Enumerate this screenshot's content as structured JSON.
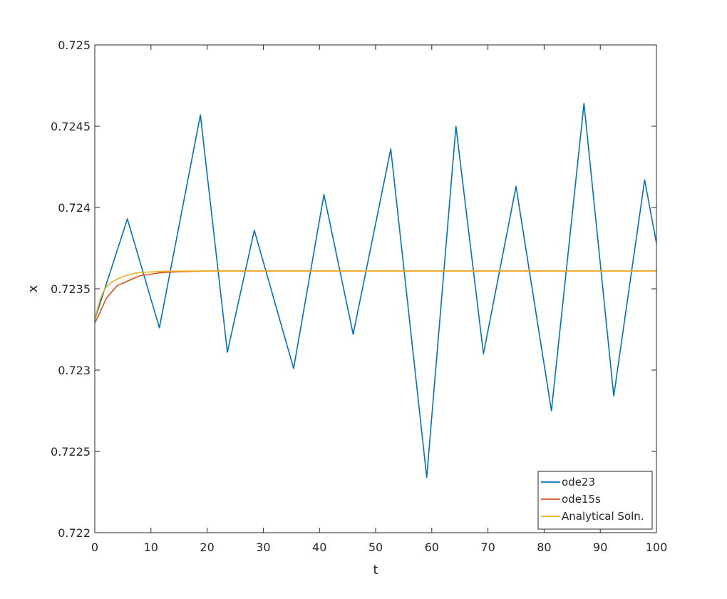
{
  "chart_data": {
    "type": "line",
    "xlabel": "t",
    "ylabel": "x",
    "xlim": [
      0,
      100
    ],
    "ylim": [
      0.722,
      0.725
    ],
    "x_ticks": [
      0,
      10,
      20,
      30,
      40,
      50,
      60,
      70,
      80,
      90,
      100
    ],
    "x_tick_labels": [
      "0",
      "10",
      "20",
      "30",
      "40",
      "50",
      "60",
      "70",
      "80",
      "90",
      "100"
    ],
    "y_ticks": [
      0.722,
      0.7225,
      0.723,
      0.7235,
      0.724,
      0.7245,
      0.725
    ],
    "y_tick_labels": [
      "0.722",
      "0.7225",
      "0.723",
      "0.7235",
      "0.724",
      "0.7245",
      "0.725"
    ],
    "grid": false,
    "box": true,
    "legend_position": "bottom-right",
    "series": [
      {
        "name": "ode23",
        "color": "#0072BD",
        "x": [
          0,
          5.8,
          11.5,
          18.8,
          23.6,
          28.4,
          35.4,
          40.8,
          46.0,
          52.7,
          59.1,
          64.3,
          69.2,
          75.0,
          81.3,
          87.1,
          92.4,
          97.9,
          100
        ],
        "y": [
          0.72331,
          0.72393,
          0.72326,
          0.72457,
          0.72311,
          0.72386,
          0.72301,
          0.72408,
          0.72322,
          0.72436,
          0.72234,
          0.7245,
          0.7231,
          0.72413,
          0.72275,
          0.72464,
          0.72284,
          0.72417,
          0.72378
        ]
      },
      {
        "name": "ode15s",
        "color": "#D95319",
        "x": [
          0,
          1.0,
          2.0,
          4.0,
          6.0,
          8.0,
          10.0,
          12.0,
          15.0,
          20.0,
          30.0,
          50.0,
          100
        ],
        "y": [
          0.72329,
          0.72336,
          0.72344,
          0.72352,
          0.72355,
          0.72358,
          0.72359,
          0.7236,
          0.723605,
          0.72361,
          0.72361,
          0.72361,
          0.72361
        ]
      },
      {
        "name": "Analytical Soln.",
        "color": "#EDB120",
        "x": [
          0,
          0.5,
          1.0,
          1.5,
          2.0,
          3.0,
          4.0,
          5.0,
          6.0,
          7.0,
          8.0,
          10.0,
          12.0,
          15.0,
          20.0,
          30.0,
          50.0,
          100
        ],
        "y": [
          0.72331,
          0.72338,
          0.72344,
          0.72348,
          0.72351,
          0.72354,
          0.72356,
          0.723575,
          0.723585,
          0.723595,
          0.7236,
          0.723604,
          0.723607,
          0.723609,
          0.72361,
          0.72361,
          0.72361,
          0.72361
        ]
      }
    ]
  }
}
